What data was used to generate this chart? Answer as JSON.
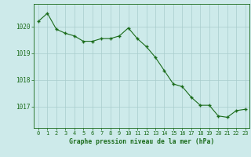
{
  "hours": [
    0,
    1,
    2,
    3,
    4,
    5,
    6,
    7,
    8,
    9,
    10,
    11,
    12,
    13,
    14,
    15,
    16,
    17,
    18,
    19,
    20,
    21,
    22,
    23
  ],
  "pressure": [
    1020.2,
    1020.5,
    1019.9,
    1019.75,
    1019.65,
    1019.45,
    1019.45,
    1019.55,
    1019.55,
    1019.65,
    1019.95,
    1019.55,
    1019.25,
    1018.85,
    1018.35,
    1017.85,
    1017.75,
    1017.35,
    1017.05,
    1017.05,
    1016.65,
    1016.6,
    1016.85,
    1016.9
  ],
  "line_color": "#1a6b1a",
  "marker_color": "#1a6b1a",
  "bg_color": "#cdeaea",
  "grid_color": "#a8cccc",
  "xlabel": "Graphe pression niveau de la mer (hPa)",
  "xlabel_color": "#1a6b1a",
  "tick_color": "#1a6b1a",
  "yticks": [
    1017,
    1018,
    1019,
    1020
  ],
  "ylim": [
    1016.2,
    1020.85
  ],
  "xlim": [
    -0.5,
    23.5
  ]
}
